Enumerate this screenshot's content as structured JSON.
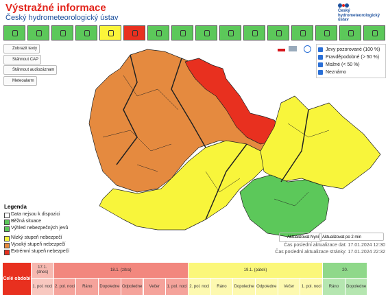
{
  "header": {
    "title": "Výstražné informace",
    "subtitle": "Český hydrometeorologický ústav",
    "logo": "Český hydrometeorologický ústav"
  },
  "buttons": [
    "Zobrazit texty",
    "Stáhnout CAP",
    "Stáhnout audiozáznam",
    "Meteoalarm"
  ],
  "filters": [
    "Jevy pozorované (100 %)",
    "Pravděpodobné (> 50 %)",
    "Možné (< 50 %)",
    "Neznámo"
  ],
  "legend": {
    "title": "Legenda",
    "items": [
      "Data nejsou k dispozici",
      "Běžná situace",
      "Výhled nebezpečných jevů",
      "Nízký stupeň nebezpečí",
      "Vysoký stupeň nebezpečí",
      "Extrémní stupeň nebezpečí"
    ]
  },
  "update": {
    "button": "Aktualizovat Nyní",
    "interval": "Aktualizovat po 2 min",
    "data_time": "Čas poslední aktualizace dat: 17.01.2024 12:30",
    "page_time": "Čas poslední aktualizace stránky: 17.01.2024 22:32"
  },
  "timeline": {
    "whole": "Celé období",
    "days": [
      {
        "label": "17.1. (dnes)",
        "periods": [
          "1. pol. noci"
        ]
      },
      {
        "label": "18.1. (zítra)",
        "periods": [
          "2. pol. noci",
          "Ráno",
          "Dopoledne",
          "Odpoledne",
          "Večer",
          "1. pol. noci"
        ]
      },
      {
        "label": "19.1. (pátek)",
        "periods": [
          "2. pol. noci",
          "Ráno",
          "Dopoledne",
          "Odpoledne",
          "Večer",
          "1. pol. noci"
        ]
      },
      {
        "label": "20.",
        "periods": [
          "Ráno",
          "Dopoledne"
        ]
      }
    ]
  }
}
